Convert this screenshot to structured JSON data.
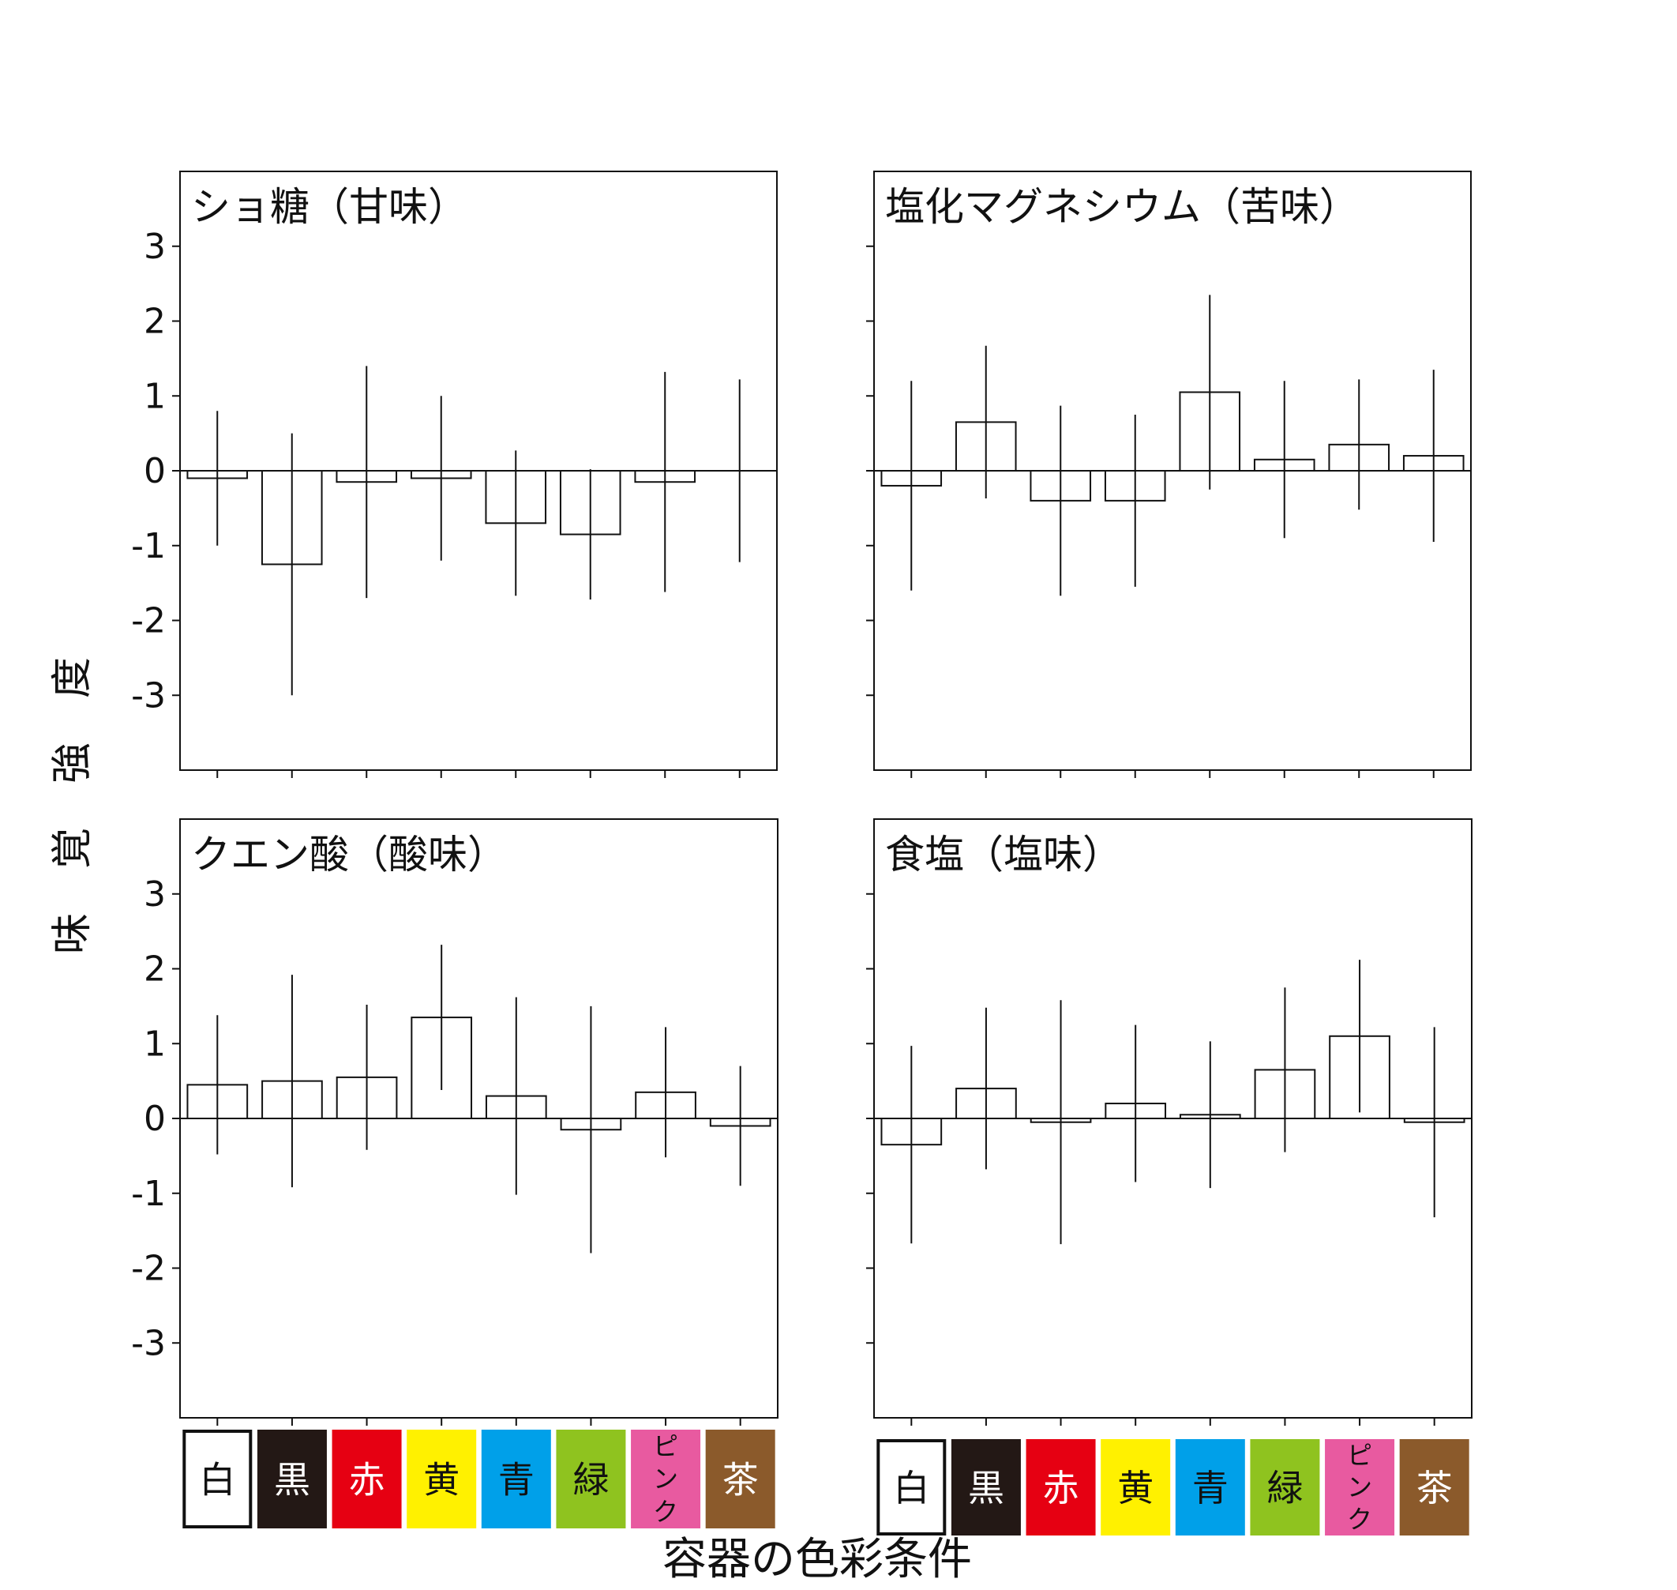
{
  "chart_data": {
    "type": "bar",
    "ylabel": "味覚強度",
    "xlabel": "容器の色彩条件",
    "ylim": [
      -4,
      4
    ],
    "yticks": [
      -3,
      -2,
      -1,
      0,
      1,
      2,
      3
    ],
    "tick_labels": [
      "-3",
      "-2",
      "-1",
      "0",
      "1",
      "2",
      "3"
    ],
    "grid": false,
    "categories": [
      "白",
      "黒",
      "赤",
      "黄",
      "青",
      "緑",
      "ピンク",
      "茶"
    ],
    "category_colors": [
      "#ffffff",
      "#231815",
      "#e60012",
      "#fff100",
      "#00a0e9",
      "#8fc31f",
      "#e85aa0",
      "#8b5a2b"
    ],
    "category_text_colors": [
      "#111111",
      "#ffffff",
      "#ffffff",
      "#111111",
      "#111111",
      "#111111",
      "#111111",
      "#ffffff"
    ],
    "panels": [
      {
        "title": "ショ糖（甘味）",
        "values": [
          -0.1,
          -1.25,
          -0.15,
          -0.1,
          -0.7,
          -0.85,
          -0.15,
          0.0
        ],
        "errors": [
          0.9,
          1.75,
          1.55,
          1.1,
          0.97,
          0.87,
          1.47,
          1.22
        ]
      },
      {
        "title": "塩化マグネシウム（苦味）",
        "values": [
          -0.2,
          0.65,
          -0.4,
          -0.4,
          1.05,
          0.15,
          0.35,
          0.2
        ],
        "errors": [
          1.4,
          1.02,
          1.27,
          1.15,
          1.3,
          1.05,
          0.87,
          1.15
        ]
      },
      {
        "title": "クエン酸（酸味）",
        "values": [
          0.45,
          0.5,
          0.55,
          1.35,
          0.3,
          -0.15,
          0.35,
          -0.1
        ],
        "errors": [
          0.93,
          1.42,
          0.97,
          0.97,
          1.32,
          1.65,
          0.87,
          0.8
        ]
      },
      {
        "title": "食塩（塩味）",
        "values": [
          -0.35,
          0.4,
          -0.05,
          0.2,
          0.05,
          0.65,
          1.1,
          -0.05
        ],
        "errors": [
          1.32,
          1.08,
          1.63,
          1.05,
          0.98,
          1.1,
          1.02,
          1.27
        ]
      }
    ]
  }
}
